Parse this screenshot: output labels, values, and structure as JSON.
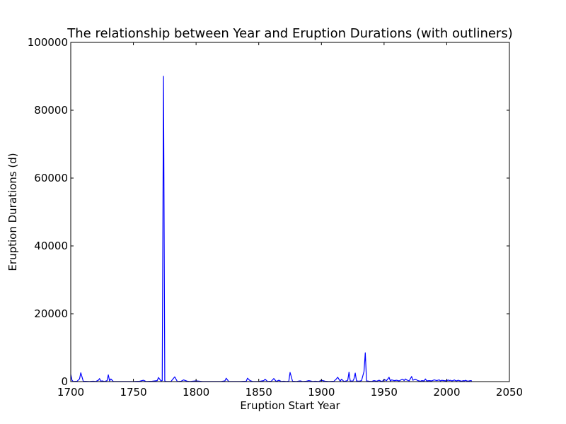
{
  "chart_data": {
    "type": "line",
    "title": "The relationship between Year and Eruption Durations (with outliners)",
    "xlabel": "Eruption Start Year",
    "ylabel": "Eruption Durations (d)",
    "xlim": [
      1700,
      2050
    ],
    "ylim": [
      0,
      100000
    ],
    "x_ticks": [
      "1700",
      "1750",
      "1800",
      "1850",
      "1900",
      "1950",
      "2000",
      "2050"
    ],
    "y_ticks": [
      "0",
      "20000",
      "40000",
      "60000",
      "80000",
      "100000"
    ],
    "grid": false,
    "line_color": "#0000ff",
    "series": [
      {
        "x": [
          1700,
          1701,
          1702,
          1705,
          1707,
          1708,
          1710,
          1715,
          1718,
          1720,
          1722,
          1723,
          1724,
          1725,
          1727,
          1729,
          1730,
          1731,
          1732,
          1734,
          1740,
          1745,
          1750,
          1755,
          1758,
          1760,
          1765,
          1769,
          1770,
          1772,
          1773,
          1774,
          1775,
          1776,
          1780,
          1783,
          1785,
          1788,
          1790,
          1793,
          1795,
          1800,
          1805,
          1810,
          1815,
          1820,
          1823,
          1824,
          1826,
          1830,
          1835,
          1840,
          1841,
          1843,
          1845,
          1850,
          1854,
          1855,
          1857,
          1860,
          1862,
          1864,
          1866,
          1868,
          1870,
          1872,
          1874,
          1875,
          1877,
          1880,
          1883,
          1885,
          1888,
          1890,
          1893,
          1895,
          1898,
          1900,
          1903,
          1906,
          1910,
          1912,
          1913,
          1915,
          1916,
          1918,
          1920,
          1921,
          1922,
          1923,
          1925,
          1926,
          1927,
          1928,
          1930,
          1932,
          1934,
          1935,
          1936,
          1938,
          1940,
          1942,
          1944,
          1946,
          1948,
          1949,
          1950,
          1952,
          1954,
          1955,
          1956,
          1958,
          1960,
          1962,
          1964,
          1965,
          1966,
          1967,
          1968,
          1970,
          1972,
          1973,
          1975,
          1977,
          1979,
          1980,
          1982,
          1983,
          1984,
          1986,
          1988,
          1990,
          1991,
          1992,
          1994,
          1995,
          1996,
          1998,
          2000,
          2001,
          2002,
          2003,
          2004,
          2005,
          2006,
          2007,
          2008,
          2009,
          2010,
          2011,
          2012,
          2013,
          2014,
          2015,
          2016,
          2017,
          2018,
          2019,
          2020
        ],
        "y": [
          2100,
          400,
          50,
          100,
          800,
          2600,
          100,
          50,
          100,
          50,
          400,
          900,
          100,
          200,
          50,
          300,
          2000,
          200,
          800,
          50,
          50,
          50,
          50,
          100,
          400,
          50,
          100,
          300,
          1200,
          200,
          300,
          90000,
          200,
          50,
          50,
          1400,
          50,
          100,
          500,
          100,
          50,
          200,
          50,
          50,
          50,
          50,
          200,
          1000,
          50,
          50,
          50,
          100,
          1000,
          300,
          50,
          50,
          300,
          700,
          50,
          100,
          900,
          50,
          400,
          50,
          100,
          50,
          100,
          2700,
          100,
          50,
          200,
          50,
          100,
          300,
          50,
          100,
          50,
          400,
          100,
          50,
          100,
          800,
          1300,
          100,
          700,
          50,
          200,
          400,
          2800,
          200,
          100,
          800,
          2500,
          200,
          100,
          300,
          3000,
          8500,
          200,
          100,
          50,
          300,
          100,
          400,
          50,
          200,
          600,
          300,
          1300,
          200,
          500,
          300,
          400,
          200,
          600,
          700,
          300,
          800,
          500,
          200,
          1500,
          400,
          700,
          300,
          100,
          300,
          200,
          800,
          200,
          300,
          200,
          500,
          400,
          300,
          500,
          200,
          400,
          300,
          200,
          500,
          300,
          400,
          200,
          300,
          500,
          300,
          200,
          400,
          300,
          200,
          100,
          300,
          200,
          400,
          200,
          100,
          200,
          300,
          200
        ]
      }
    ]
  }
}
